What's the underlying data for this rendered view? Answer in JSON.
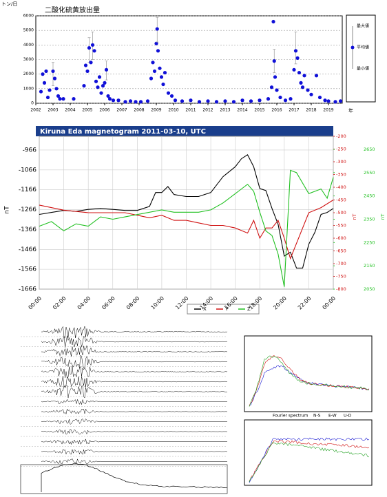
{
  "chart_data": [
    {
      "type": "scatter",
      "title": "二酸化硫黄放出量",
      "ylabel": "トン/日",
      "xlabel": "年",
      "xlim": [
        2002,
        2019.8
      ],
      "ylim": [
        0,
        6000
      ],
      "xticks": [
        2002,
        2003,
        2004,
        2005,
        2006,
        2007,
        2008,
        2009,
        2010,
        2011,
        2012,
        2013,
        2014,
        2015,
        2016,
        2017,
        2018,
        2019
      ],
      "yticks": [
        0,
        1000,
        2000,
        3000,
        4000,
        5000,
        6000
      ],
      "grid": true,
      "error_labels": [
        "最大値",
        "最小値"
      ],
      "series": [
        {
          "name": "平均値",
          "color": "#1010d8",
          "x": [
            2002.3,
            2002.4,
            2002.5,
            2002.6,
            2002.7,
            2002.8,
            2003.0,
            2003.1,
            2003.2,
            2003.3,
            2003.4,
            2003.6,
            2004.2,
            2004.8,
            2004.9,
            2005.0,
            2005.1,
            2005.2,
            2005.3,
            2005.4,
            2005.5,
            2005.6,
            2005.7,
            2005.8,
            2005.9,
            2006.0,
            2006.1,
            2006.2,
            2006.3,
            2006.5,
            2006.8,
            2007.2,
            2007.5,
            2007.8,
            2008.1,
            2008.5,
            2008.7,
            2008.8,
            2008.9,
            2009.0,
            2009.05,
            2009.1,
            2009.2,
            2009.3,
            2009.4,
            2009.5,
            2009.7,
            2009.9,
            2010.1,
            2010.5,
            2011.0,
            2011.5,
            2012.0,
            2012.5,
            2013.0,
            2013.5,
            2014.0,
            2014.5,
            2015.0,
            2015.5,
            2015.7,
            2015.8,
            2015.85,
            2015.9,
            2016.0,
            2016.2,
            2016.5,
            2016.8,
            2017.0,
            2017.1,
            2017.2,
            2017.3,
            2017.4,
            2017.5,
            2017.6,
            2017.8,
            2018.0,
            2018.3,
            2018.5,
            2018.8,
            2019.0,
            2019.4,
            2019.7
          ],
          "values": [
            800,
            2000,
            1400,
            2200,
            400,
            900,
            2200,
            1700,
            1000,
            500,
            300,
            300,
            300,
            1200,
            2600,
            2200,
            3800,
            2800,
            4000,
            3600,
            1500,
            1100,
            1800,
            700,
            1200,
            1400,
            2300,
            500,
            300,
            200,
            200,
            100,
            150,
            100,
            100,
            150,
            1700,
            2800,
            2200,
            4100,
            5100,
            3600,
            2400,
            1800,
            1300,
            2100,
            700,
            500,
            200,
            150,
            200,
            100,
            150,
            100,
            150,
            100,
            200,
            150,
            200,
            300,
            1100,
            5600,
            2900,
            1800,
            900,
            400,
            200,
            300,
            2300,
            3600,
            3100,
            2100,
            1400,
            1100,
            1900,
            900,
            600,
            1900,
            400,
            200,
            150,
            100,
            150
          ],
          "max": [
            null,
            null,
            null,
            null,
            null,
            null,
            2800,
            null,
            null,
            null,
            null,
            null,
            null,
            null,
            null,
            null,
            4500,
            null,
            4900,
            null,
            null,
            null,
            null,
            null,
            null,
            null,
            2900,
            null,
            null,
            null,
            null,
            null,
            null,
            null,
            null,
            null,
            null,
            null,
            null,
            null,
            5900,
            null,
            null,
            null,
            null,
            null,
            null,
            null,
            null,
            null,
            null,
            null,
            null,
            null,
            null,
            null,
            null,
            null,
            null,
            null,
            null,
            null,
            3700,
            null,
            null,
            null,
            null,
            null,
            null,
            4900,
            null,
            null,
            null,
            null,
            null,
            null,
            null,
            null,
            null,
            null,
            null,
            null,
            null
          ],
          "min": [
            null,
            null,
            null,
            null,
            null,
            null,
            1200,
            null,
            null,
            null,
            null,
            null,
            null,
            null,
            null,
            null,
            2800,
            null,
            3000,
            null,
            null,
            null,
            null,
            null,
            null,
            null,
            1600,
            null,
            null,
            null,
            null,
            null,
            null,
            null,
            null,
            null,
            null,
            null,
            null,
            null,
            4200,
            null,
            null,
            null,
            null,
            null,
            null,
            null,
            null,
            null,
            null,
            null,
            null,
            null,
            null,
            null,
            null,
            null,
            null,
            null,
            null,
            null,
            2100,
            null,
            null,
            null,
            null,
            null,
            null,
            2700,
            null,
            null,
            null,
            null,
            null,
            null,
            null,
            null,
            null,
            null,
            null,
            null,
            null
          ]
        }
      ]
    },
    {
      "type": "line",
      "title": "Kiruna Eda magnetogram 2011-03-10, UTC",
      "ylabel": "nT",
      "y2label": "nT",
      "y3label": "nT",
      "xlim": [
        0,
        24
      ],
      "ylim": [
        -1666,
        -897
      ],
      "y2lim": [
        -800,
        -200
      ],
      "y3lim": [
        2050,
        2706
      ],
      "xticks": [
        {
          "value": 0,
          "label": "00:00"
        },
        {
          "value": 2,
          "label": "02:00"
        },
        {
          "value": 4,
          "label": "04:00"
        },
        {
          "value": 6,
          "label": "06:00"
        },
        {
          "value": 8,
          "label": "08:00"
        },
        {
          "value": 10,
          "label": "10:00"
        },
        {
          "value": 12,
          "label": "12:00"
        },
        {
          "value": 14,
          "label": "14:00"
        },
        {
          "value": 16,
          "label": "16:00"
        },
        {
          "value": 18,
          "label": "18:00"
        },
        {
          "value": 20,
          "label": "20:00"
        },
        {
          "value": 22,
          "label": "22:00"
        },
        {
          "value": 24,
          "label": "00:00"
        }
      ],
      "yticks": [
        -1666,
        -1566,
        -1466,
        -1366,
        -1266,
        -1166,
        -1066,
        -966
      ],
      "y2ticks": [
        -800,
        -750,
        -700,
        -650,
        -600,
        -550,
        -500,
        -450,
        -400,
        -350,
        -300,
        -250,
        -200
      ],
      "y3ticks": [
        2050,
        2150,
        2250,
        2350,
        2450,
        2550,
        2650
      ],
      "grid": true,
      "series": [
        {
          "name": "X",
          "color": "#000000",
          "x": [
            0,
            1,
            2,
            3,
            4,
            5,
            6,
            7,
            8,
            9,
            9.5,
            10,
            10.5,
            11,
            12,
            13,
            14,
            15,
            16,
            16.5,
            17,
            17.5,
            18,
            18.5,
            19,
            19.5,
            20,
            20.5,
            21,
            21.5,
            22,
            22.5,
            23,
            23.5,
            24
          ],
          "values": [
            -1290,
            -1280,
            -1270,
            -1275,
            -1265,
            -1260,
            -1265,
            -1270,
            -1270,
            -1250,
            -1180,
            -1180,
            -1150,
            -1190,
            -1200,
            -1200,
            -1180,
            -1100,
            -1050,
            -1010,
            -990,
            -1050,
            -1160,
            -1170,
            -1260,
            -1340,
            -1500,
            -1480,
            -1560,
            -1560,
            -1440,
            -1380,
            -1290,
            -1280,
            -1260
          ]
        },
        {
          "name": "Y",
          "color": "#d01010",
          "axis": "y2",
          "x": [
            0,
            2,
            4,
            6,
            7,
            8,
            9,
            10,
            11,
            12,
            13,
            14,
            15,
            16,
            17,
            17.5,
            18,
            18.5,
            19,
            19.5,
            20,
            20.5,
            21,
            22,
            23,
            24
          ],
          "values": [
            -470,
            -490,
            -500,
            -500,
            -500,
            -510,
            -520,
            -510,
            -530,
            -530,
            -540,
            -550,
            -550,
            -560,
            -580,
            -530,
            -600,
            -560,
            -560,
            -530,
            -600,
            -680,
            -620,
            -500,
            -480,
            -450
          ]
        },
        {
          "name": "Z",
          "color": "#20c020",
          "axis": "y3",
          "x": [
            0,
            1,
            2,
            3,
            4,
            5,
            6,
            7,
            8,
            9,
            10,
            11,
            12,
            13,
            14,
            15,
            16,
            16.5,
            17,
            17.5,
            18,
            18.5,
            19,
            19.5,
            20,
            20.5,
            21,
            22,
            23,
            23.5,
            24
          ],
          "values": [
            2320,
            2340,
            2300,
            2330,
            2320,
            2360,
            2350,
            2360,
            2370,
            2380,
            2390,
            2380,
            2380,
            2380,
            2390,
            2420,
            2460,
            2480,
            2500,
            2470,
            2380,
            2300,
            2280,
            2200,
            2060,
            2560,
            2550,
            2460,
            2480,
            2440,
            2530
          ]
        }
      ]
    },
    {
      "type": "spectrum",
      "title": "Fourier spectrum",
      "legend": [
        "N-S",
        "E-W",
        "U-D"
      ]
    }
  ]
}
